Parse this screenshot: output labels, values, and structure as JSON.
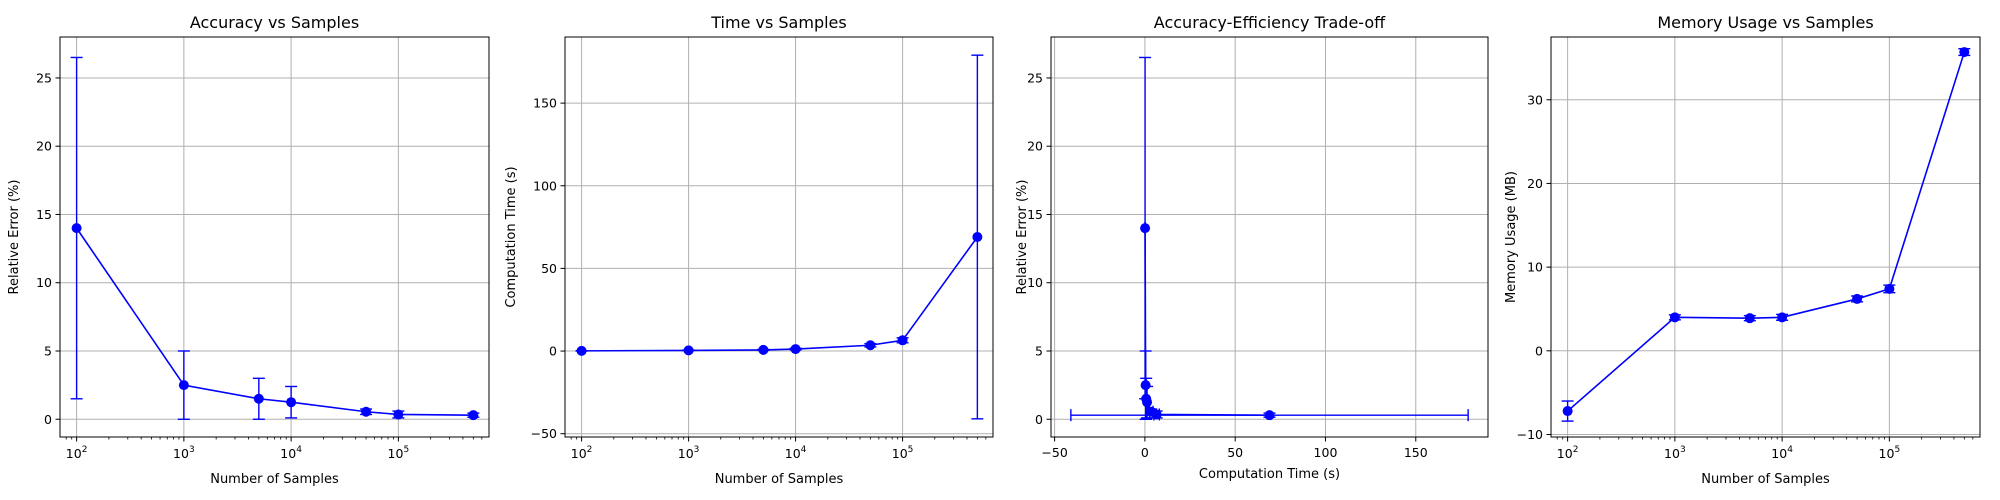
{
  "chart_data": [
    {
      "type": "line",
      "title": "Accuracy vs Samples",
      "xlabel": "Number of Samples",
      "ylabel": "Relative Error (%)",
      "xscale": "log",
      "xlim": [
        70,
        700000
      ],
      "ylim": [
        -1.3,
        28
      ],
      "xticks": [
        100,
        1000,
        10000,
        100000
      ],
      "xtick_labels": [
        [
          "10",
          "2"
        ],
        [
          "10",
          "3"
        ],
        [
          "10",
          "4"
        ],
        [
          "10",
          "5"
        ]
      ],
      "yticks": [
        0,
        5,
        10,
        15,
        20,
        25
      ],
      "ytick_labels": [
        "0",
        "5",
        "10",
        "15",
        "20",
        "25"
      ],
      "grid": true,
      "color": "#0000ff",
      "series": [
        {
          "x": [
            100,
            1000,
            5000,
            10000,
            50000,
            100000,
            500000
          ],
          "y": [
            14.0,
            2.5,
            1.5,
            1.25,
            0.55,
            0.35,
            0.3
          ],
          "yerr": [
            12.5,
            2.5,
            1.5,
            1.15,
            0.2,
            0.25,
            0.15
          ]
        }
      ]
    },
    {
      "type": "line",
      "title": "Time vs Samples",
      "xlabel": "Number of Samples",
      "ylabel": "Computation Time (s)",
      "xscale": "log",
      "xlim": [
        70,
        700000
      ],
      "ylim": [
        -52,
        190
      ],
      "xticks": [
        100,
        1000,
        10000,
        100000
      ],
      "xtick_labels": [
        [
          "10",
          "2"
        ],
        [
          "10",
          "3"
        ],
        [
          "10",
          "4"
        ],
        [
          "10",
          "5"
        ]
      ],
      "yticks": [
        -50,
        0,
        50,
        100,
        150
      ],
      "ytick_labels": [
        "−50",
        "0",
        "50",
        "100",
        "150"
      ],
      "grid": true,
      "color": "#0000ff",
      "series": [
        {
          "x": [
            100,
            1000,
            5000,
            10000,
            50000,
            100000,
            500000
          ],
          "y": [
            0.1,
            0.4,
            0.7,
            1.2,
            3.5,
            6.5,
            69
          ],
          "yerr": [
            0.1,
            0.2,
            0.3,
            0.5,
            1.0,
            1.5,
            110
          ]
        }
      ]
    },
    {
      "type": "line",
      "title": "Accuracy-Efficiency Trade-off",
      "xlabel": "Computation Time (s)",
      "ylabel": "Relative Error (%)",
      "xscale": "linear",
      "xlim": [
        -52,
        190
      ],
      "ylim": [
        -1.3,
        28
      ],
      "xticks": [
        -50,
        0,
        50,
        100,
        150
      ],
      "xtick_labels": [
        "−50",
        "0",
        "50",
        "100",
        "150"
      ],
      "yticks": [
        0,
        5,
        10,
        15,
        20,
        25
      ],
      "ytick_labels": [
        "0",
        "5",
        "10",
        "15",
        "20",
        "25"
      ],
      "grid": true,
      "color": "#0000ff",
      "series": [
        {
          "x": [
            0.1,
            0.4,
            0.7,
            1.2,
            3.5,
            6.5,
            69
          ],
          "y": [
            14.0,
            2.5,
            1.5,
            1.25,
            0.55,
            0.35,
            0.3
          ],
          "xerr": [
            0.1,
            0.2,
            0.3,
            0.5,
            1.0,
            1.5,
            110
          ],
          "yerr": [
            12.5,
            2.5,
            1.5,
            1.15,
            0.2,
            0.25,
            0.15
          ]
        }
      ]
    },
    {
      "type": "line",
      "title": "Memory Usage vs Samples",
      "xlabel": "Number of Samples",
      "ylabel": "Memory Usage (MB)",
      "xscale": "log",
      "xlim": [
        70,
        700000
      ],
      "ylim": [
        -10.3,
        37.5
      ],
      "xticks": [
        100,
        1000,
        10000,
        100000
      ],
      "xtick_labels": [
        [
          "10",
          "2"
        ],
        [
          "10",
          "3"
        ],
        [
          "10",
          "4"
        ],
        [
          "10",
          "5"
        ]
      ],
      "yticks": [
        -10,
        0,
        10,
        20,
        30
      ],
      "ytick_labels": [
        "−10",
        "0",
        "10",
        "20",
        "30"
      ],
      "grid": true,
      "color": "#0000ff",
      "series": [
        {
          "x": [
            100,
            1000,
            5000,
            10000,
            50000,
            100000,
            500000
          ],
          "y": [
            -7.2,
            4.0,
            3.9,
            4.0,
            6.2,
            7.4,
            35.7
          ],
          "yerr": [
            1.2,
            0.3,
            0.3,
            0.35,
            0.35,
            0.45,
            0.4
          ]
        }
      ]
    }
  ]
}
